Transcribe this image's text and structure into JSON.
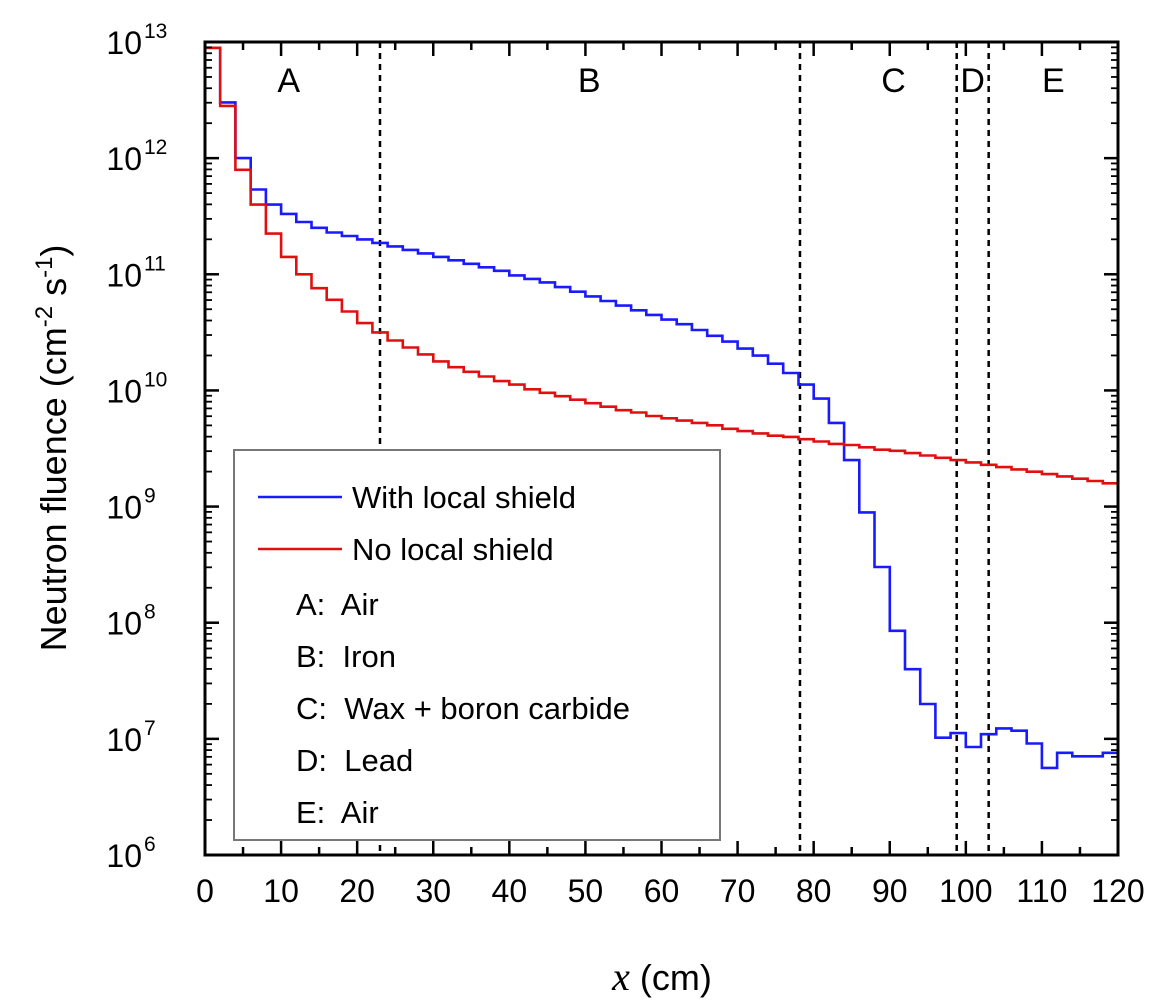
{
  "chart_data": {
    "type": "line",
    "xlabel": {
      "var": "x",
      "unit": " (cm)"
    },
    "ylabel": {
      "main": "Neutron fluence (cm",
      "exp1": "-2",
      "mid": " s",
      "exp2": "-1",
      "end": ")"
    },
    "xlim": [
      0,
      120
    ],
    "ylim_log10": [
      6,
      13
    ],
    "y_scale": "log",
    "x_ticks": [
      0,
      10,
      20,
      30,
      40,
      50,
      60,
      70,
      80,
      90,
      100,
      110,
      120
    ],
    "x_tick_labels": [
      "0",
      "10",
      "20",
      "30",
      "40",
      "50",
      "60",
      "70",
      "80",
      "90",
      "100",
      "110",
      "120"
    ],
    "y_ticks": [
      {
        "base": "10",
        "exp": "6",
        "value": 6
      },
      {
        "base": "10",
        "exp": "7",
        "value": 7
      },
      {
        "base": "10",
        "exp": "8",
        "value": 8
      },
      {
        "base": "10",
        "exp": "9",
        "value": 9
      },
      {
        "base": "10",
        "exp": "10",
        "value": 10
      },
      {
        "base": "10",
        "exp": "11",
        "value": 11
      },
      {
        "base": "10",
        "exp": "12",
        "value": 12
      },
      {
        "base": "10",
        "exp": "13",
        "value": 13
      }
    ],
    "region_boundaries": [
      23,
      78.2,
      98.8,
      103
    ],
    "regions": [
      {
        "label": "A",
        "x": 11
      },
      {
        "label": "B",
        "x": 50.5
      },
      {
        "label": "C",
        "x": 90.5
      },
      {
        "label": "D",
        "x": 100.9
      },
      {
        "label": "E",
        "x": 111.5
      }
    ],
    "series": [
      {
        "name": "With local shield",
        "color": "#1a1aff",
        "x": [
          1,
          3,
          5,
          7,
          9,
          11,
          13,
          15,
          17,
          19,
          21,
          23,
          25,
          27,
          29,
          31,
          33,
          35,
          37,
          39,
          41,
          43,
          45,
          47,
          49,
          51,
          53,
          55,
          57,
          59,
          61,
          63,
          65,
          67,
          69,
          71,
          73,
          75,
          77,
          79,
          81,
          83,
          85,
          87,
          89,
          91,
          93,
          95,
          97,
          99,
          101,
          103,
          105,
          107,
          109,
          111,
          113,
          115,
          117,
          119,
          121
        ],
        "y_log10": [
          12.95,
          12.48,
          12.0,
          11.73,
          11.6,
          11.52,
          11.45,
          11.4,
          11.36,
          11.33,
          11.3,
          11.27,
          11.24,
          11.21,
          11.18,
          11.15,
          11.12,
          11.09,
          11.06,
          11.03,
          10.99,
          10.96,
          10.93,
          10.89,
          10.85,
          10.81,
          10.77,
          10.73,
          10.69,
          10.65,
          10.61,
          10.57,
          10.52,
          10.47,
          10.42,
          10.36,
          10.3,
          10.23,
          10.15,
          10.05,
          9.93,
          9.72,
          9.4,
          8.95,
          8.48,
          7.93,
          7.6,
          7.3,
          7.01,
          7.05,
          6.93,
          7.04,
          7.09,
          7.07,
          6.96,
          6.75,
          6.88,
          6.85,
          6.85,
          6.88,
          6.79
        ]
      },
      {
        "name": "No local shield",
        "color": "#e01010",
        "x": [
          1,
          3,
          5,
          7,
          9,
          11,
          13,
          15,
          17,
          19,
          21,
          23,
          25,
          27,
          29,
          31,
          33,
          35,
          37,
          39,
          41,
          43,
          45,
          47,
          49,
          51,
          53,
          55,
          57,
          59,
          61,
          63,
          65,
          67,
          69,
          71,
          73,
          75,
          77,
          79,
          81,
          83,
          85,
          87,
          89,
          91,
          93,
          95,
          97,
          99,
          101,
          103,
          105,
          107,
          109,
          111,
          113,
          115,
          117,
          119,
          121
        ],
        "y_log10": [
          12.95,
          12.45,
          11.9,
          11.6,
          11.35,
          11.15,
          11.0,
          10.88,
          10.78,
          10.68,
          10.58,
          10.5,
          10.43,
          10.37,
          10.31,
          10.25,
          10.2,
          10.16,
          10.12,
          10.08,
          10.05,
          10.01,
          9.98,
          9.95,
          9.92,
          9.89,
          9.86,
          9.83,
          9.81,
          9.78,
          9.76,
          9.74,
          9.72,
          9.7,
          9.67,
          9.65,
          9.63,
          9.61,
          9.6,
          9.58,
          9.56,
          9.54,
          9.53,
          9.51,
          9.49,
          9.48,
          9.46,
          9.44,
          9.42,
          9.4,
          9.38,
          9.36,
          9.34,
          9.32,
          9.3,
          9.28,
          9.26,
          9.24,
          9.22,
          9.2,
          9.18
        ]
      }
    ],
    "legend": {
      "placement": "lower-left",
      "lines": [
        {
          "label": "With local shield",
          "color": "#1a1aff"
        },
        {
          "label": "No local shield",
          "color": "#e01010"
        }
      ],
      "notes": [
        "A:  Air",
        "B:  Iron",
        "C:  Wax + boron carbide",
        "D:  Lead",
        "E:  Air"
      ]
    }
  }
}
